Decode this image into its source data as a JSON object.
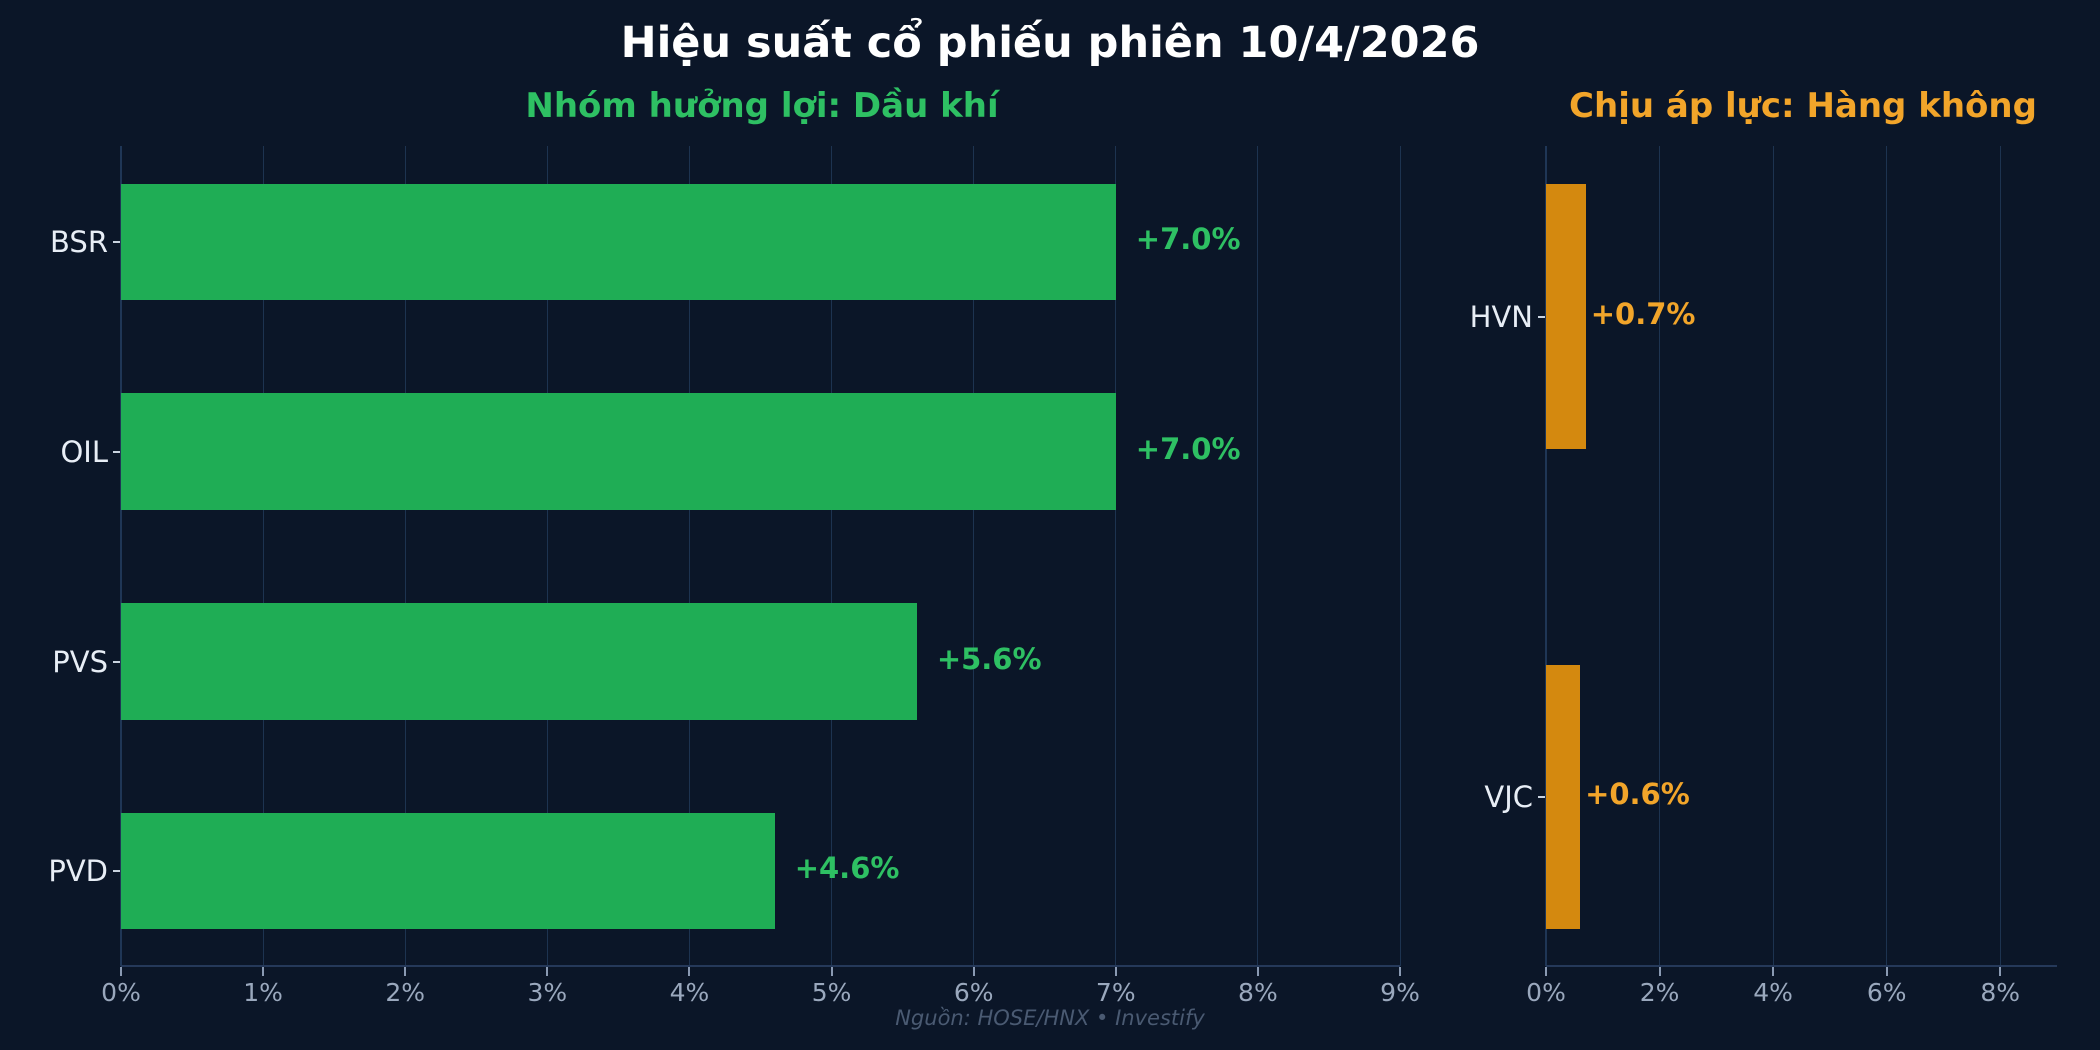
{
  "title": "Hiệu suất cổ phiếu phiên 10/4/2026",
  "source": "Nguồn: HOSE/HNX  •  Investify",
  "colors": {
    "background": "#0b1628",
    "gain": "#1fad55",
    "gain_label": "#2ec063",
    "pressure": "#d4890f",
    "pressure_label": "#f2a52a"
  },
  "left_panel": {
    "subtitle": "Nhóm hưởng lợi: Dầu khí",
    "ticks": [
      "0%",
      "1%",
      "2%",
      "3%",
      "4%",
      "5%",
      "6%",
      "7%",
      "8%",
      "9%"
    ],
    "bars": [
      {
        "ticker": "BSR",
        "label": "+7.0%"
      },
      {
        "ticker": "OIL",
        "label": "+7.0%"
      },
      {
        "ticker": "PVS",
        "label": "+5.6%"
      },
      {
        "ticker": "PVD",
        "label": "+4.6%"
      }
    ]
  },
  "right_panel": {
    "subtitle": "Chịu áp lực: Hàng không",
    "ticks": [
      "0%",
      "2%",
      "4%",
      "6%",
      "8%"
    ],
    "bars": [
      {
        "ticker": "HVN",
        "label": "+0.7%"
      },
      {
        "ticker": "VJC",
        "label": "+0.6%"
      }
    ]
  },
  "chart_data": [
    {
      "type": "bar",
      "orientation": "horizontal",
      "title": "Nhóm hưởng lợi: Dầu khí",
      "suptitle": "Hiệu suất cổ phiếu phiên 10/4/2026",
      "categories": [
        "BSR",
        "OIL",
        "PVS",
        "PVD"
      ],
      "values": [
        7.0,
        7.0,
        5.6,
        4.6
      ],
      "value_labels": [
        "+7.0%",
        "+7.0%",
        "+5.6%",
        "+4.6%"
      ],
      "xlabel": "",
      "ylabel": "",
      "xlim": [
        0,
        9
      ],
      "xticks": [
        "0%",
        "1%",
        "2%",
        "3%",
        "4%",
        "5%",
        "6%",
        "7%",
        "8%",
        "9%"
      ],
      "grid": "vertical",
      "color": "#1fad55"
    },
    {
      "type": "bar",
      "orientation": "horizontal",
      "title": "Chịu áp lực: Hàng không",
      "categories": [
        "HVN",
        "VJC"
      ],
      "values": [
        0.7,
        0.6
      ],
      "value_labels": [
        "+0.7%",
        "+0.6%"
      ],
      "xlabel": "",
      "ylabel": "",
      "xlim": [
        0,
        9
      ],
      "xticks": [
        "0%",
        "2%",
        "4%",
        "6%",
        "8%"
      ],
      "grid": "vertical",
      "color": "#d4890f",
      "source_note": "Nguồn: HOSE/HNX  •  Investify"
    }
  ]
}
